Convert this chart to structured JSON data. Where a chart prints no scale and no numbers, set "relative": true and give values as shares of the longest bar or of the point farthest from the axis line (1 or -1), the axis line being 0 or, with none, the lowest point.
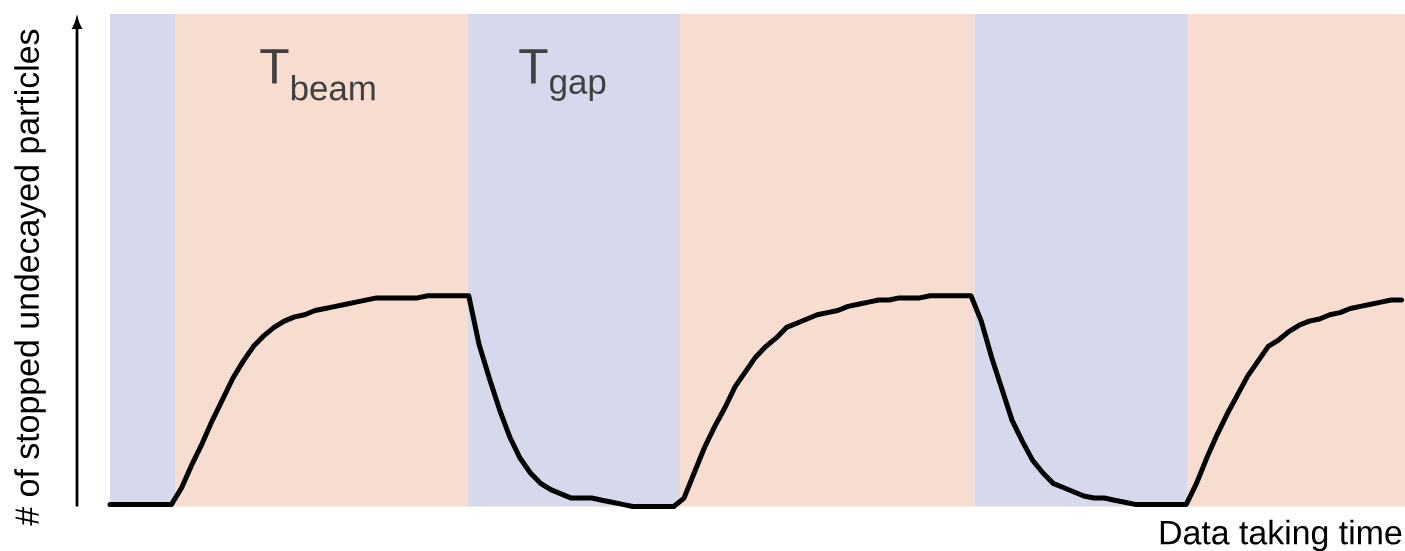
{
  "chart_data": {
    "type": "line",
    "relative": true,
    "xlabel": "Data taking time",
    "ylabel": "# of stopped undecayed particles",
    "annotations": [
      "T$_{beam}$",
      "T$_{gap}$"
    ],
    "categories": [
      null,
      null,
      null,
      null,
      null,
      null,
      null,
      null,
      null,
      null,
      null,
      null,
      null,
      null,
      null,
      null,
      null,
      null,
      null,
      null,
      null,
      null,
      null,
      null,
      null,
      null,
      null,
      null,
      null,
      null,
      null,
      null,
      null,
      null,
      null,
      null,
      null,
      null,
      null,
      null,
      null,
      null,
      null,
      null,
      null,
      null,
      null,
      null,
      null,
      null,
      null,
      null,
      null,
      null,
      null,
      null,
      null,
      null,
      null,
      null,
      null,
      null,
      null,
      null,
      null,
      null,
      null,
      null,
      null,
      null,
      null,
      null,
      null,
      null,
      null,
      null,
      null,
      null,
      null,
      null,
      null,
      null,
      null,
      null,
      null,
      null,
      null,
      null,
      null,
      null,
      null,
      null,
      null,
      null,
      null,
      null,
      null,
      null,
      null,
      null,
      null,
      null,
      null,
      null,
      null,
      null,
      null,
      null,
      null,
      null,
      null,
      null,
      null,
      null,
      null,
      null,
      null,
      null,
      null,
      null,
      null,
      null,
      null,
      null,
      null,
      null,
      null
    ],
    "series": [
      {
        "color": "#000000",
        "values": [
          0.01,
          0.01,
          0.01,
          0.01,
          0.01,
          0.01,
          0.01,
          0.09,
          0.2,
          0.3,
          0.41,
          0.51,
          0.61,
          0.69,
          0.76,
          0.81,
          0.85,
          0.88,
          0.9,
          0.91,
          0.93,
          0.94,
          0.95,
          0.96,
          0.97,
          0.98,
          0.99,
          0.99,
          0.99,
          0.99,
          0.99,
          1,
          1,
          1,
          1,
          1,
          0.77,
          0.61,
          0.46,
          0.33,
          0.23,
          0.16,
          0.11,
          0.08,
          0.06,
          0.04,
          0.04,
          0.04,
          0.03,
          0.02,
          0.01,
          0,
          0,
          0,
          0,
          0,
          0.04,
          0.16,
          0.28,
          0.38,
          0.47,
          0.57,
          0.64,
          0.71,
          0.76,
          0.8,
          0.85,
          0.87,
          0.89,
          0.91,
          0.92,
          0.93,
          0.95,
          0.96,
          0.97,
          0.98,
          0.98,
          0.99,
          0.99,
          0.99,
          1,
          1,
          1,
          1,
          1,
          0.88,
          0.71,
          0.56,
          0.41,
          0.31,
          0.22,
          0.16,
          0.11,
          0.09,
          0.07,
          0.05,
          0.04,
          0.04,
          0.03,
          0.02,
          0.01,
          0.01,
          0.01,
          0.01,
          0.01,
          0.01,
          0.11,
          0.23,
          0.34,
          0.44,
          0.53,
          0.62,
          0.69,
          0.76,
          0.79,
          0.83,
          0.86,
          0.88,
          0.89,
          0.91,
          0.92,
          0.94,
          0.95,
          0.96,
          0.97,
          0.98,
          0.98
        ]
      }
    ]
  }
}
